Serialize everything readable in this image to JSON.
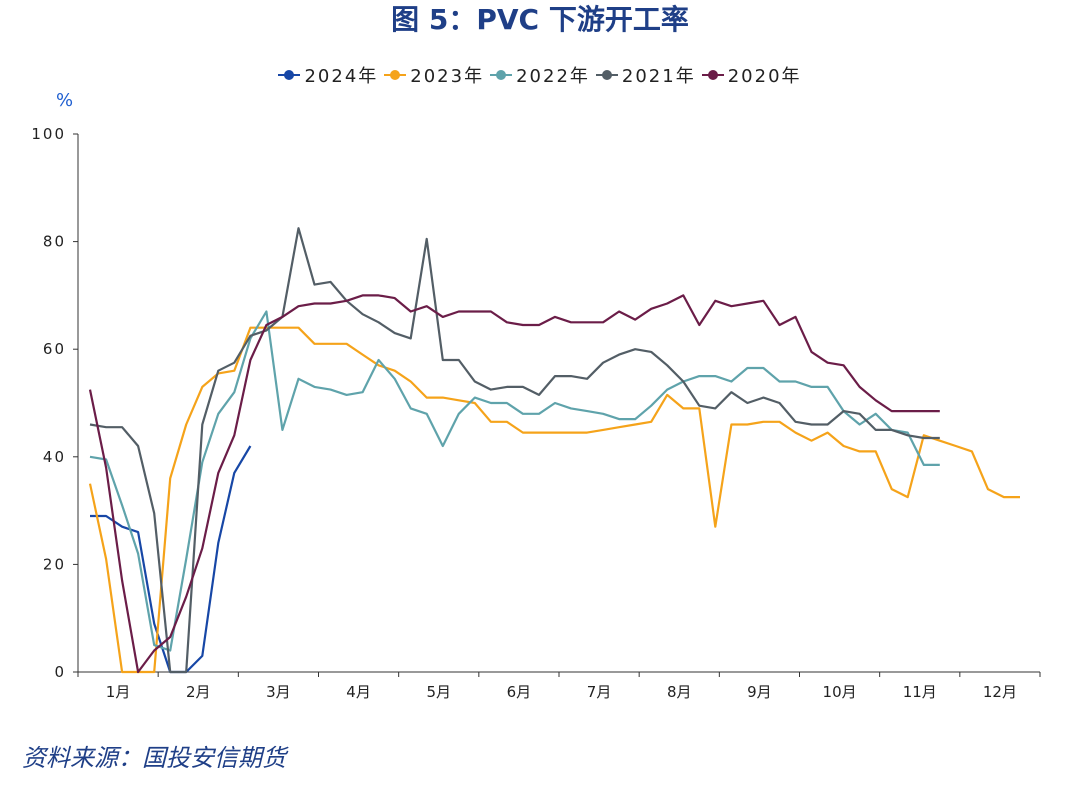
{
  "title": "图 5：PVC 下游开工率",
  "unit": "%",
  "source": "资料来源：国投安信期货",
  "chart_data": {
    "type": "line",
    "title": "图 5：PVC 下游开工率",
    "ylabel": "%",
    "ylim": [
      0,
      100
    ],
    "yticks": [
      0,
      20,
      40,
      60,
      80,
      100
    ],
    "xlim": [
      0.5,
      12.5
    ],
    "month_labels": [
      "1月",
      "2月",
      "3月",
      "4月",
      "5月",
      "6月",
      "7月",
      "8月",
      "9月",
      "10月",
      "11月",
      "12月"
    ],
    "legend_position": "top-center",
    "grid": false,
    "series": [
      {
        "name": "2024年",
        "color": "#1747a6",
        "x": [
          0.65,
          0.85,
          1.05,
          1.25,
          1.45,
          1.65,
          1.85,
          2.05,
          2.25,
          2.45,
          2.65
        ],
        "y": [
          29,
          29,
          27,
          26,
          9,
          0,
          0,
          3,
          24,
          37,
          42
        ]
      },
      {
        "name": "2023年",
        "color": "#f5a31a",
        "x": [
          0.65,
          0.85,
          1.05,
          1.25,
          1.45,
          1.65,
          1.85,
          2.05,
          2.25,
          2.45,
          2.65,
          2.85,
          3.05,
          3.25,
          3.45,
          3.65,
          3.85,
          4.05,
          4.25,
          4.45,
          4.65,
          4.85,
          5.05,
          5.25,
          5.45,
          5.65,
          5.85,
          6.05,
          6.25,
          6.45,
          6.65,
          6.85,
          7.05,
          7.25,
          7.45,
          7.65,
          7.85,
          8.05,
          8.25,
          8.45,
          8.65,
          8.85,
          9.05,
          9.25,
          9.45,
          9.65,
          9.85,
          10.05,
          10.25,
          10.45,
          10.65,
          10.85,
          11.05,
          11.25,
          11.45,
          11.65,
          11.85,
          12.05,
          12.25
        ],
        "y": [
          35,
          21,
          0,
          0,
          0,
          36,
          46,
          53,
          55.5,
          56,
          64,
          64,
          64,
          64,
          61,
          61,
          61,
          59,
          57,
          56,
          54,
          51,
          51,
          50.5,
          50,
          46.5,
          46.5,
          44.5,
          44.5,
          44.5,
          44.5,
          44.5,
          45,
          45.5,
          46,
          46.5,
          51.5,
          49,
          49,
          27,
          46,
          46,
          46.5,
          46.5,
          44.5,
          43,
          44.5,
          42,
          41,
          41,
          34,
          32.5,
          44,
          43,
          42,
          41,
          34,
          32.5,
          32.5
        ]
      },
      {
        "name": "2022年",
        "color": "#5fa3ab",
        "x": [
          0.65,
          0.85,
          1.05,
          1.25,
          1.45,
          1.65,
          1.85,
          2.05,
          2.25,
          2.45,
          2.65,
          2.85,
          3.05,
          3.25,
          3.45,
          3.65,
          3.85,
          4.05,
          4.25,
          4.45,
          4.65,
          4.85,
          5.05,
          5.25,
          5.45,
          5.65,
          5.85,
          6.05,
          6.25,
          6.45,
          6.65,
          6.85,
          7.05,
          7.25,
          7.45,
          7.65,
          7.85,
          8.05,
          8.25,
          8.45,
          8.65,
          8.85,
          9.05,
          9.25,
          9.45,
          9.65,
          9.85,
          10.05,
          10.25,
          10.45,
          10.65,
          10.85,
          11.05,
          11.25
        ],
        "y": [
          40,
          39.5,
          31,
          22,
          5,
          4,
          21,
          39,
          48,
          52,
          62,
          67,
          45,
          54.5,
          53,
          52.5,
          51.5,
          52,
          58,
          54.5,
          49,
          48,
          42,
          48,
          51,
          50,
          50,
          48,
          48,
          50,
          49,
          48.5,
          48,
          47,
          47,
          49.5,
          52.5,
          54,
          55,
          55,
          54,
          56.5,
          56.5,
          54,
          54,
          53,
          53,
          48.5,
          46,
          48,
          45,
          44.5,
          38.5,
          38.5
        ]
      },
      {
        "name": "2021年",
        "color": "#535e66",
        "x": [
          0.65,
          0.85,
          1.05,
          1.25,
          1.45,
          1.65,
          1.85,
          2.05,
          2.25,
          2.45,
          2.65,
          2.85,
          3.05,
          3.25,
          3.45,
          3.65,
          3.85,
          4.05,
          4.25,
          4.45,
          4.65,
          4.85,
          5.05,
          5.25,
          5.45,
          5.65,
          5.85,
          6.05,
          6.25,
          6.45,
          6.65,
          6.85,
          7.05,
          7.25,
          7.45,
          7.65,
          7.85,
          8.05,
          8.25,
          8.45,
          8.65,
          8.85,
          9.05,
          9.25,
          9.45,
          9.65,
          9.85,
          10.05,
          10.25,
          10.45,
          10.65,
          10.85,
          11.05,
          11.25
        ],
        "y": [
          46,
          45.5,
          45.5,
          42,
          29.5,
          0,
          0,
          46,
          56,
          57.5,
          62.5,
          63.5,
          66,
          82.5,
          72,
          72.5,
          69,
          66.5,
          65,
          63,
          62,
          80.5,
          58,
          58,
          54,
          52.5,
          53,
          53,
          51.5,
          55,
          55,
          54.5,
          57.5,
          59,
          60,
          59.5,
          57,
          54,
          49.5,
          49,
          52,
          50,
          51,
          50,
          46.5,
          46,
          46,
          48.5,
          48,
          45,
          45,
          44,
          43.5,
          43.5
        ]
      },
      {
        "name": "2020年",
        "color": "#6b1d48",
        "x": [
          0.65,
          0.85,
          1.05,
          1.25,
          1.45,
          1.65,
          1.85,
          2.05,
          2.25,
          2.45,
          2.65,
          2.85,
          3.05,
          3.25,
          3.45,
          3.65,
          3.85,
          4.05,
          4.25,
          4.45,
          4.65,
          4.85,
          5.05,
          5.25,
          5.45,
          5.65,
          5.85,
          6.05,
          6.25,
          6.45,
          6.65,
          6.85,
          7.05,
          7.25,
          7.45,
          7.65,
          7.85,
          8.05,
          8.25,
          8.45,
          8.65,
          8.85,
          9.05,
          9.25,
          9.45,
          9.65,
          9.85,
          10.05,
          10.25,
          10.45,
          10.65,
          10.85,
          11.05,
          11.25
        ],
        "y": [
          52.5,
          38,
          17,
          0,
          4,
          6.5,
          14,
          23,
          37,
          44,
          58,
          64.5,
          66,
          68,
          68.5,
          68.5,
          69,
          70,
          70,
          69.5,
          67,
          68,
          66,
          67,
          67,
          67,
          65,
          64.5,
          64.5,
          66,
          65,
          65,
          65,
          67,
          65.5,
          67.5,
          68.5,
          70,
          64.5,
          69,
          68,
          68.5,
          69,
          64.5,
          66,
          59.5,
          57.5,
          57,
          53,
          50.5,
          48.5,
          48.5,
          48.5,
          48.5
        ]
      }
    ]
  }
}
